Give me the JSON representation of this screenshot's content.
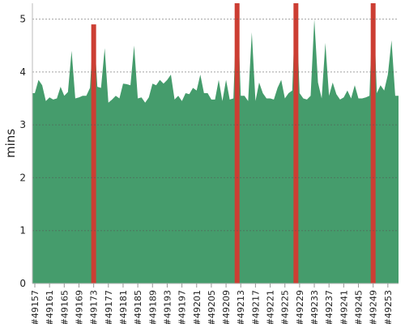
{
  "chart_data": {
    "type": "area",
    "y_label": "mins",
    "categories": [
      "#49157",
      null,
      null,
      null,
      "#49161",
      null,
      null,
      null,
      "#49165",
      null,
      null,
      null,
      "#49169",
      null,
      null,
      null,
      "#49173",
      null,
      null,
      null,
      "#49177",
      null,
      null,
      null,
      "#49181",
      null,
      null,
      null,
      "#49185",
      null,
      null,
      null,
      "#49189",
      null,
      null,
      null,
      "#49193",
      null,
      null,
      null,
      "#49197",
      null,
      null,
      null,
      "#49201",
      null,
      null,
      null,
      "#49205",
      null,
      null,
      null,
      "#49209",
      null,
      null,
      null,
      "#49213",
      null,
      null,
      null,
      "#49217",
      null,
      null,
      null,
      "#49221",
      null,
      null,
      null,
      "#49225",
      null,
      null,
      null,
      "#49229",
      null,
      null,
      null,
      "#49233",
      null,
      null,
      null,
      "#49237",
      null,
      null,
      null,
      "#49241",
      null,
      null,
      null,
      "#49245",
      null,
      null,
      null,
      "#49249",
      null,
      null,
      null,
      "#49253",
      null,
      null
    ],
    "series": [
      {
        "color": "#459c6c",
        "values": [
          3.6,
          3.85,
          3.75,
          3.45,
          3.52,
          3.48,
          3.5,
          3.72,
          3.55,
          3.62,
          4.4,
          3.5,
          3.52,
          3.55,
          3.55,
          3.7,
          4.9,
          3.72,
          3.7,
          4.45,
          3.42,
          3.48,
          3.55,
          3.5,
          3.78,
          3.77,
          3.75,
          4.5,
          3.5,
          3.52,
          3.42,
          3.52,
          3.78,
          3.75,
          3.85,
          3.78,
          3.85,
          3.95,
          3.48,
          3.55,
          3.45,
          3.6,
          3.58,
          3.7,
          3.65,
          3.95,
          3.6,
          3.6,
          3.48,
          3.48,
          3.85,
          3.45,
          3.85,
          3.48,
          3.5,
          5.5,
          3.55,
          3.55,
          3.45,
          4.75,
          3.45,
          3.8,
          3.6,
          3.5,
          3.5,
          3.48,
          3.7,
          3.85,
          3.5,
          3.6,
          3.65,
          5.5,
          3.6,
          3.5,
          3.48,
          3.55,
          5.0,
          3.8,
          3.5,
          4.55,
          3.55,
          3.8,
          3.58,
          3.48,
          3.52,
          3.65,
          3.5,
          3.75,
          3.5,
          3.5,
          3.52,
          3.55,
          5.5,
          3.6,
          3.75,
          3.65,
          3.95,
          4.6,
          3.55
        ]
      },
      {
        "type": "bar",
        "color": "#cc3e33",
        "values": [
          null,
          null,
          null,
          null,
          null,
          null,
          null,
          null,
          null,
          null,
          null,
          null,
          null,
          null,
          null,
          null,
          4.9,
          null,
          null,
          null,
          null,
          null,
          null,
          null,
          null,
          null,
          null,
          null,
          null,
          null,
          null,
          null,
          null,
          null,
          null,
          null,
          null,
          null,
          null,
          null,
          null,
          null,
          null,
          null,
          null,
          null,
          null,
          null,
          null,
          null,
          null,
          null,
          null,
          null,
          null,
          5.5,
          null,
          null,
          null,
          null,
          null,
          null,
          null,
          null,
          null,
          null,
          null,
          null,
          null,
          null,
          null,
          5.5,
          null,
          null,
          null,
          null,
          null,
          null,
          null,
          null,
          null,
          null,
          null,
          null,
          null,
          null,
          null,
          null,
          null,
          null,
          null,
          null,
          5.5,
          null,
          null,
          null,
          null,
          null,
          null
        ]
      }
    ],
    "ylim": [
      0,
      5.3
    ],
    "yticks": [
      0,
      1,
      2,
      3,
      4,
      5
    ],
    "grid": true
  }
}
